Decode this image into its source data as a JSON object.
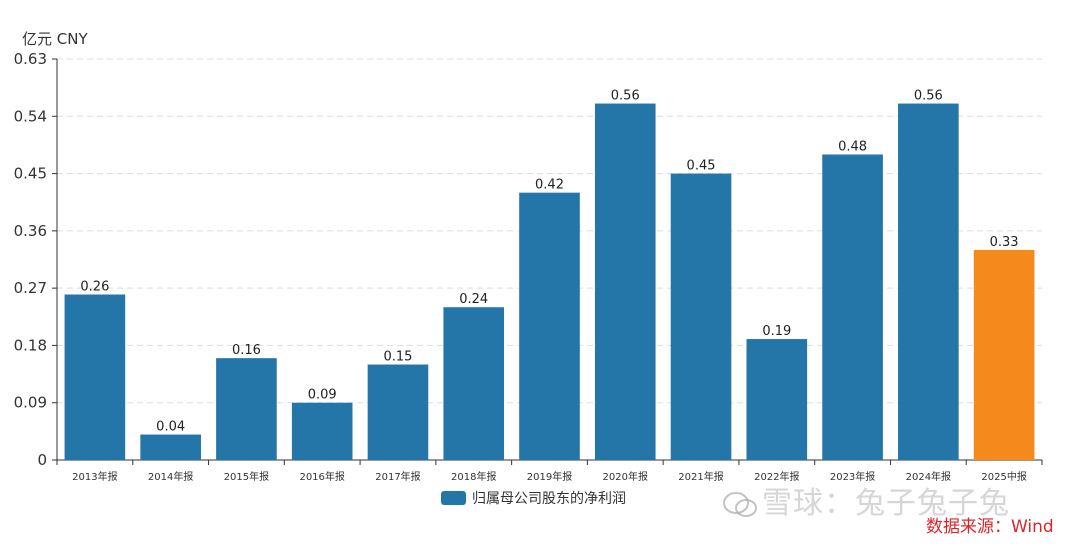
{
  "chart_data": {
    "type": "bar",
    "unit_label": "亿元  CNY",
    "categories": [
      "2013年报",
      "2014年报",
      "2015年报",
      "2016年报",
      "2017年报",
      "2018年报",
      "2019年报",
      "2020年报",
      "2021年报",
      "2022年报",
      "2023年报",
      "2024年报",
      "2025中报"
    ],
    "series": [
      {
        "name": "归属母公司股东的净利润",
        "values": [
          0.26,
          0.04,
          0.16,
          0.09,
          0.15,
          0.24,
          0.42,
          0.56,
          0.45,
          0.19,
          0.48,
          0.56,
          0.33
        ],
        "data_labels": [
          "0.26",
          "0.04",
          "0.16",
          "0.09",
          "0.15",
          "0.24",
          "0.42",
          "0.56",
          "0.45",
          "0.19",
          "0.48",
          "0.56",
          "0.33"
        ]
      }
    ],
    "ylim": [
      0,
      0.63
    ],
    "yticks": [
      "0",
      "0.09",
      "0.18",
      "0.27",
      "0.36",
      "0.45",
      "0.54",
      "0.63"
    ],
    "grid": true,
    "legend_position": "bottom-center",
    "colors": {
      "bar": "#2376a7",
      "highlight_bar": "#f5891c",
      "grid": "#dddddd",
      "axis": "#333333"
    },
    "highlight_index": 12
  },
  "legend": {
    "label": "归属母公司股东的净利润"
  },
  "source_text": "数据来源：Wind",
  "watermark_text": "雪球：兔子兔子兔"
}
